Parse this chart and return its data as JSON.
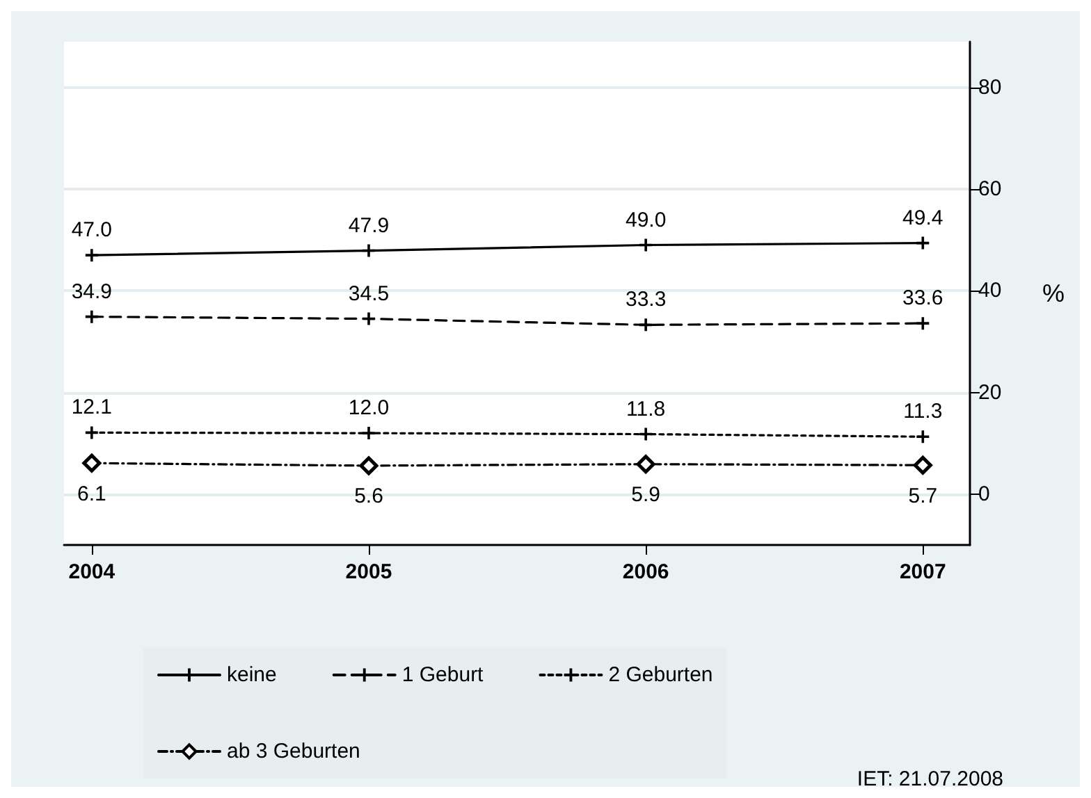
{
  "chart_data": {
    "type": "line",
    "ylabel": "%",
    "x": [
      2004,
      2005,
      2006,
      2007
    ],
    "xlim": [
      2003.9,
      2007.17
    ],
    "xticks": [
      2004,
      2005,
      2006,
      2007
    ],
    "ylim": [
      -10,
      89
    ],
    "yticks": [
      0,
      20,
      40,
      60,
      80
    ],
    "grid": "y",
    "legend": "bottom",
    "annotations": [
      "IET: 21.07.2008"
    ],
    "series": [
      {
        "name": "keine",
        "color": "#000000",
        "values": [
          47.0,
          47.9,
          49.0,
          49.4
        ],
        "value_labels": [
          "47.0",
          "47.9",
          "49.0",
          "49.4"
        ],
        "marker": "cross",
        "line_style": "solid"
      },
      {
        "name": "1 Geburt",
        "color": "#000000",
        "values": [
          34.9,
          34.5,
          33.3,
          33.6
        ],
        "value_labels": [
          "34.9",
          "34.5",
          "33.3",
          "33.6"
        ],
        "marker": "cross",
        "line_style": "dashed"
      },
      {
        "name": "2 Geburten",
        "color": "#000000",
        "values": [
          12.1,
          12.0,
          11.8,
          11.3
        ],
        "value_labels": [
          "12.1",
          "12.0",
          "11.8",
          "11.3"
        ],
        "marker": "cross",
        "line_style": "dotted"
      },
      {
        "name": "ab 3 Geburten",
        "color": "#000000",
        "values": [
          6.1,
          5.6,
          5.9,
          5.7
        ],
        "value_labels": [
          "6.1",
          "5.6",
          "5.9",
          "5.7"
        ],
        "marker": "diamond",
        "line_style": "dashdot"
      }
    ]
  }
}
